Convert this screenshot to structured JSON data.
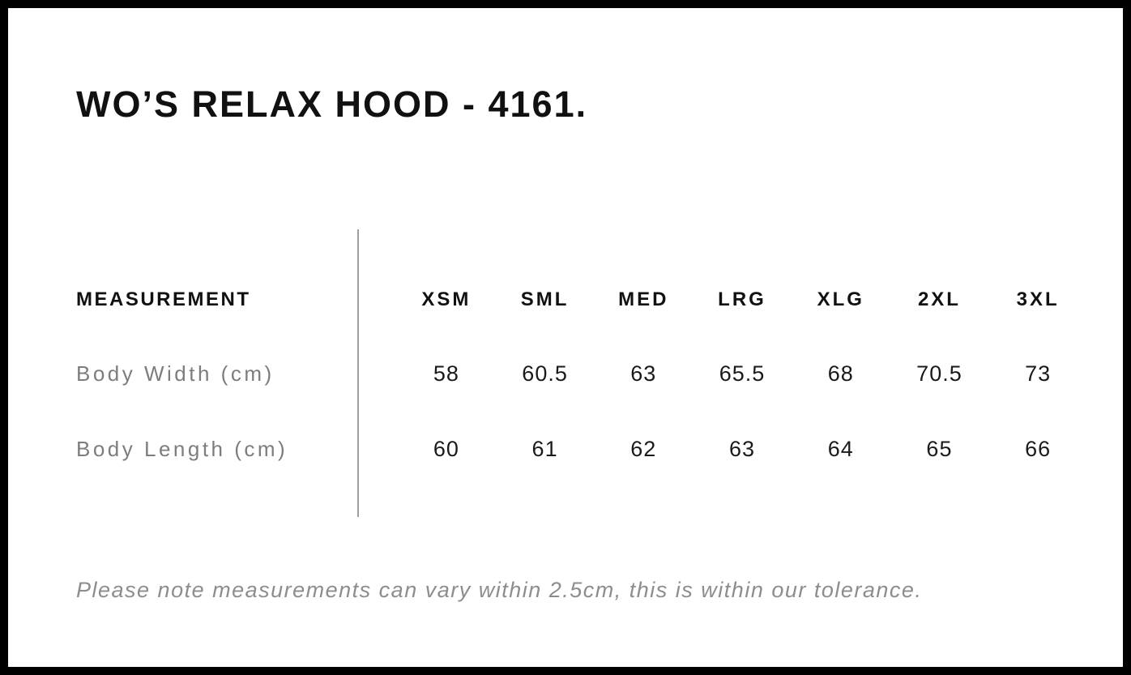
{
  "title": "WO’S RELAX HOOD - 4161.",
  "table": {
    "measurement_header": "MEASUREMENT",
    "sizes": [
      "XSM",
      "SML",
      "MED",
      "LRG",
      "XLG",
      "2XL",
      "3XL"
    ],
    "rows": [
      {
        "label": "Body Width (cm)",
        "values": [
          "58",
          "60.5",
          "63",
          "65.5",
          "68",
          "70.5",
          "73"
        ]
      },
      {
        "label": "Body Length (cm)",
        "values": [
          "60",
          "61",
          "62",
          "63",
          "64",
          "65",
          "66"
        ]
      }
    ]
  },
  "note": "Please note measurements can vary within 2.5cm, this is within our tolerance.",
  "colors": {
    "border": "#000000",
    "text": "#111111",
    "value_text": "#1a1a1a",
    "muted_label": "#7d7d7d",
    "note_text": "#8d8d8d",
    "divider": "#a0a0a0",
    "background": "#ffffff"
  }
}
